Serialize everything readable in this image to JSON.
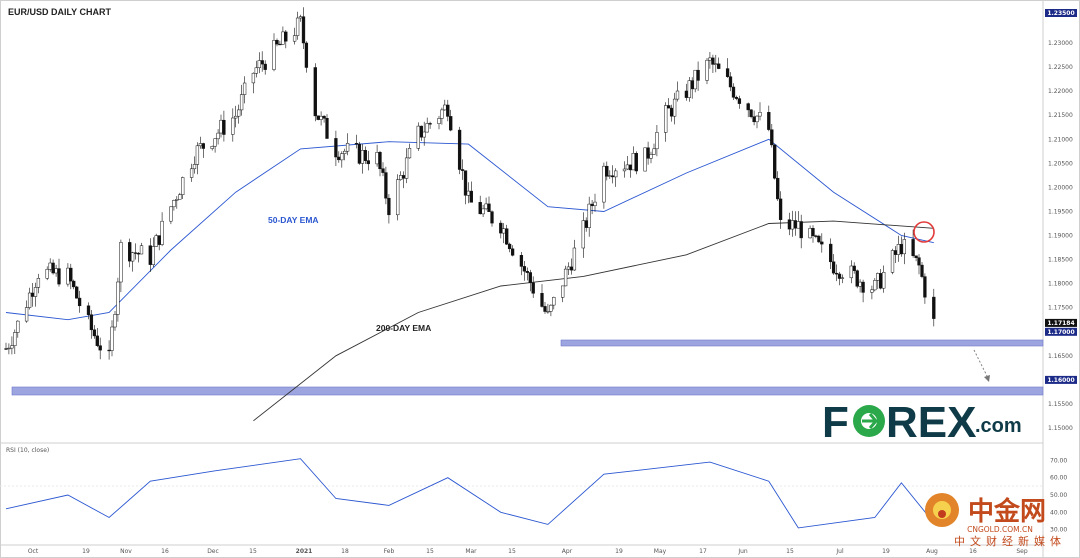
{
  "title": "EUR/USD DAILY CHART",
  "price_panel": {
    "y_axis_ticks": [
      "1.23000",
      "1.22500",
      "1.22000",
      "1.21500",
      "1.21000",
      "1.20500",
      "1.20000",
      "1.19500",
      "1.19000",
      "1.18500",
      "1.18000",
      "1.17500",
      "1.17000",
      "1.16500",
      "1.16000",
      "1.15500",
      "1.15000"
    ],
    "y_tick_values": [
      1.23,
      1.225,
      1.22,
      1.215,
      1.21,
      1.205,
      1.2,
      1.195,
      1.19,
      1.185,
      1.18,
      1.175,
      1.17,
      1.165,
      1.16,
      1.155,
      1.15
    ],
    "ylim": [
      1.1475,
      1.2375
    ],
    "price_tags": [
      {
        "label": "1.17184",
        "value": 1.17184,
        "color": "#111111",
        "text_color": "#ffffff"
      },
      {
        "label": "1.17000",
        "value": 1.17,
        "color": "#1c2a88",
        "text_color": "#ffffff"
      },
      {
        "label": "1.16000",
        "value": 1.16,
        "color": "#1c2a88",
        "text_color": "#ffffff"
      }
    ],
    "top_tags": [
      {
        "label": "1.23500",
        "color": "#1c2a88"
      }
    ],
    "annotations": [
      {
        "text": "50-DAY EMA",
        "color": "#2b57d1"
      },
      {
        "text": "200-DAY EMA",
        "color": "#222222"
      }
    ],
    "support_zones": [
      {
        "level": 1.17,
        "color": "#9da5e0"
      },
      {
        "level": 1.16,
        "color": "#9da5e0"
      }
    ]
  },
  "x_axis": {
    "ticks": [
      "Oct",
      "19",
      "Nov",
      "16",
      "Dec",
      "15",
      "2021",
      "18",
      "Feb",
      "15",
      "Mar",
      "15",
      "Apr",
      "19",
      "May",
      "17",
      "Jun",
      "15",
      "Jul",
      "19",
      "Aug",
      "16",
      "Sep"
    ]
  },
  "rsi_panel": {
    "label": "RSI (10, close)",
    "y_axis_ticks": [
      "70.00",
      "60.00",
      "50.00",
      "40.00",
      "30.00"
    ],
    "y_tick_values": [
      70,
      60,
      50,
      40,
      30
    ],
    "ylim": [
      24,
      76
    ]
  },
  "logo": {
    "text": "FOREX.com",
    "main_color": "#0e3b47",
    "accent_color": "#2aa84a"
  },
  "watermark": {
    "brand": "中金网",
    "url": "CNGOLD.COM.CN",
    "tagline": "中文财经新媒体"
  },
  "chart_data": {
    "type": "candlestick",
    "title": "EUR/USD DAILY CHART",
    "series": [
      {
        "name": "50-DAY EMA",
        "color": "#2b57d1"
      },
      {
        "name": "200-DAY EMA",
        "color": "#222222"
      },
      {
        "name": "RSI (10, close)",
        "color": "#2b57d1"
      }
    ],
    "ohlc_close_path": [
      [
        "Sep 28",
        1.1665
      ],
      [
        "Oct 2",
        1.1715
      ],
      [
        "Oct 9",
        1.1825
      ],
      [
        "Oct 19",
        1.1815
      ],
      [
        "Oct 26",
        1.1715
      ],
      [
        "Nov 2",
        1.164
      ],
      [
        "Nov 6",
        1.1875
      ],
      [
        "Nov 16",
        1.1855
      ],
      [
        "Nov 23",
        1.196
      ],
      [
        "Dec 1",
        1.207
      ],
      [
        "Dec 8",
        1.211
      ],
      [
        "Dec 15",
        1.215
      ],
      [
        "Dec 21",
        1.224
      ],
      [
        "Jan 6",
        1.234
      ],
      [
        "Jan 11",
        1.216
      ],
      [
        "Jan 18",
        1.208
      ],
      [
        "Feb 1",
        1.206
      ],
      [
        "Feb 5",
        1.196
      ],
      [
        "Feb 15",
        1.211
      ],
      [
        "Feb 25",
        1.217
      ],
      [
        "Mar 4",
        1.197
      ],
      [
        "Mar 15",
        1.1925
      ],
      [
        "Mar 31",
        1.173
      ],
      [
        "Apr 12",
        1.191
      ],
      [
        "Apr 19",
        1.204
      ],
      [
        "May 3",
        1.206
      ],
      [
        "May 10",
        1.215
      ],
      [
        "May 25",
        1.226
      ],
      [
        "Jun 1",
        1.221
      ],
      [
        "Jun 14",
        1.212
      ],
      [
        "Jun 18",
        1.192
      ],
      [
        "Jun 24",
        1.192
      ],
      [
        "Jul 6",
        1.184
      ],
      [
        "Jul 20",
        1.179
      ],
      [
        "Jul 29",
        1.188
      ],
      [
        "Aug 4",
        1.1835
      ],
      [
        "Aug 9",
        1.1718
      ]
    ],
    "ema50": [
      [
        "Sep 28",
        1.174
      ],
      [
        "Oct 19",
        1.1725
      ],
      [
        "Nov 2",
        1.174
      ],
      [
        "Nov 23",
        1.187
      ],
      [
        "Dec 15",
        1.199
      ],
      [
        "Jan 6",
        1.208
      ],
      [
        "Feb 5",
        1.2095
      ],
      [
        "Mar 4",
        1.209
      ],
      [
        "Mar 31",
        1.196
      ],
      [
        "Apr 19",
        1.195
      ],
      [
        "May 17",
        1.203
      ],
      [
        "Jun 14",
        1.21
      ],
      [
        "Jul 6",
        1.199
      ],
      [
        "Jul 29",
        1.19
      ],
      [
        "Aug 9",
        1.1885
      ]
    ],
    "ema200": [
      [
        "Dec 21",
        1.1515
      ],
      [
        "Jan 18",
        1.165
      ],
      [
        "Feb 15",
        1.174
      ],
      [
        "Mar 15",
        1.1795
      ],
      [
        "Apr 12",
        1.1815
      ],
      [
        "May 17",
        1.186
      ],
      [
        "Jun 14",
        1.1925
      ],
      [
        "Jul 6",
        1.193
      ],
      [
        "Aug 9",
        1.1915
      ]
    ],
    "rsi": [
      [
        "Sep 28",
        42
      ],
      [
        "Oct 19",
        50
      ],
      [
        "Nov 2",
        37
      ],
      [
        "Nov 16",
        58
      ],
      [
        "Dec 8",
        64
      ],
      [
        "Jan 6",
        71
      ],
      [
        "Jan 18",
        48
      ],
      [
        "Feb 5",
        44
      ],
      [
        "Feb 25",
        60
      ],
      [
        "Mar 15",
        40
      ],
      [
        "Mar 31",
        33
      ],
      [
        "Apr 19",
        62
      ],
      [
        "May 25",
        69
      ],
      [
        "Jun 14",
        58
      ],
      [
        "Jun 24",
        31
      ],
      [
        "Jul 20",
        37
      ],
      [
        "Jul 29",
        57
      ],
      [
        "Aug 9",
        34
      ]
    ],
    "ylim": [
      1.1475,
      1.2375
    ],
    "xlabel": "",
    "ylabel": ""
  }
}
